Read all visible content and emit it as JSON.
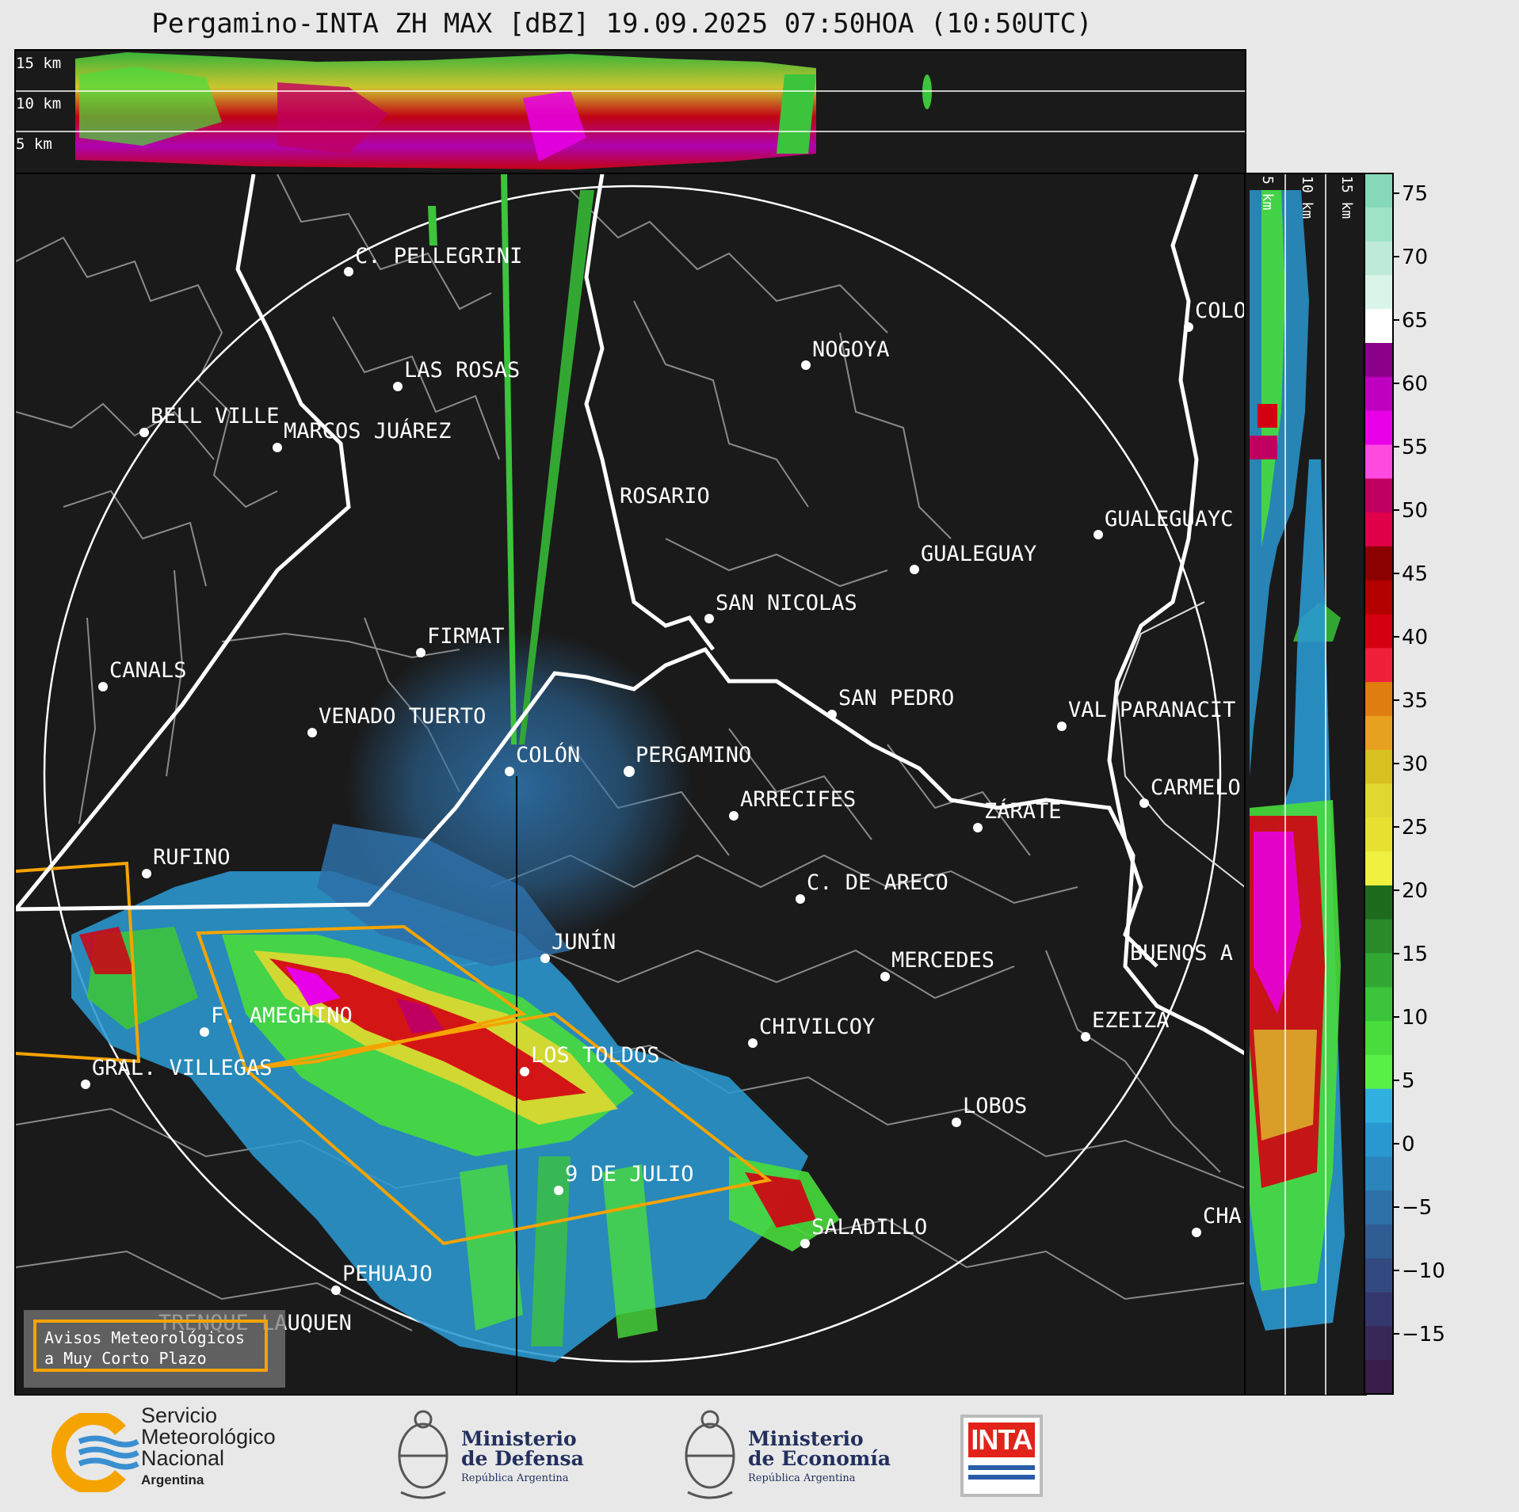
{
  "title": "Pergamino-INTA ZH MAX [dBZ] 19.09.2025 07:50HOA (10:50UTC)",
  "top_panel": {
    "height_labels": [
      "15 km",
      "10 km",
      "5 km"
    ]
  },
  "side_panel": {
    "height_labels": [
      "5 km",
      "10 km",
      "15 km"
    ]
  },
  "colorbar": {
    "unit": "dBZ",
    "tick_labels": [
      "75",
      "70",
      "65",
      "60",
      "55",
      "50",
      "45",
      "40",
      "35",
      "30",
      "25",
      "20",
      "15",
      "10",
      "5",
      "0",
      "−5",
      "−10",
      "−15"
    ],
    "colors": [
      "#85d9b8",
      "#9fe2c6",
      "#bdebd7",
      "#dbf4e9",
      "#ffffff",
      "#8b008b",
      "#c000c0",
      "#e800e8",
      "#ff4ae0",
      "#c00060",
      "#e0004a",
      "#8b0000",
      "#b30000",
      "#d40012",
      "#f0203a",
      "#e07d10",
      "#e8a020",
      "#d8c020",
      "#e0d830",
      "#e8e030",
      "#f0f040",
      "#1e6b1e",
      "#2a8a2a",
      "#32a832",
      "#3cc43c",
      "#48dc3c",
      "#58f048",
      "#30b0e0",
      "#2a98d0",
      "#2c84bc",
      "#2e70a8",
      "#305c94",
      "#334a80",
      "#35386c",
      "#382858",
      "#3a1c48"
    ]
  },
  "cities": [
    {
      "name": "C. PELLEGRINI"
    },
    {
      "name": "LAS ROSAS"
    },
    {
      "name": "BELL VILLE"
    },
    {
      "name": "MARCOS JUÁREZ"
    },
    {
      "name": "NOGOYA"
    },
    {
      "name": "COLO"
    },
    {
      "name": "ROSARIO"
    },
    {
      "name": "GUALEGUAYC"
    },
    {
      "name": "GUALEGUAY"
    },
    {
      "name": "SAN NICOLAS"
    },
    {
      "name": "FIRMAT"
    },
    {
      "name": "CANALS"
    },
    {
      "name": "SAN PEDRO"
    },
    {
      "name": "VAL PARANACIT"
    },
    {
      "name": "VENADO TUERTO"
    },
    {
      "name": "COLÓN"
    },
    {
      "name": "PERGAMINO"
    },
    {
      "name": "CARMELO"
    },
    {
      "name": "ARRECIFES"
    },
    {
      "name": "ZÁRATE"
    },
    {
      "name": "RUFINO"
    },
    {
      "name": "C. DE ARECO"
    },
    {
      "name": "JUNÍN"
    },
    {
      "name": "MERCEDES"
    },
    {
      "name": "BUENOS A"
    },
    {
      "name": "F. AMEGHINO"
    },
    {
      "name": "CHIVILCOY"
    },
    {
      "name": "EZEIZA"
    },
    {
      "name": "GRAL. VILLEGAS"
    },
    {
      "name": "LOS TOLDOS"
    },
    {
      "name": "LOBOS"
    },
    {
      "name": "9 DE JULIO"
    },
    {
      "name": "CHA"
    },
    {
      "name": "SALADILLO"
    },
    {
      "name": "PEHUAJO"
    },
    {
      "name": "TRENQUE LAUQUEN"
    }
  ],
  "warning_legend": {
    "line1": "Avisos Meteorológicos",
    "line2": "a Muy Corto Plazo",
    "color": "#f5a300"
  },
  "logos": {
    "smn": {
      "line1": "Servicio",
      "line2": "Meteorológico",
      "line3": "Nacional",
      "line4": "Argentina"
    },
    "defensa": {
      "line1": "Ministerio",
      "line2": "de Defensa",
      "line3": "República Argentina"
    },
    "economia": {
      "line1": "Ministerio",
      "line2": "de Economía",
      "line3": "República Argentina"
    },
    "inta": {
      "text": "INTA"
    }
  }
}
